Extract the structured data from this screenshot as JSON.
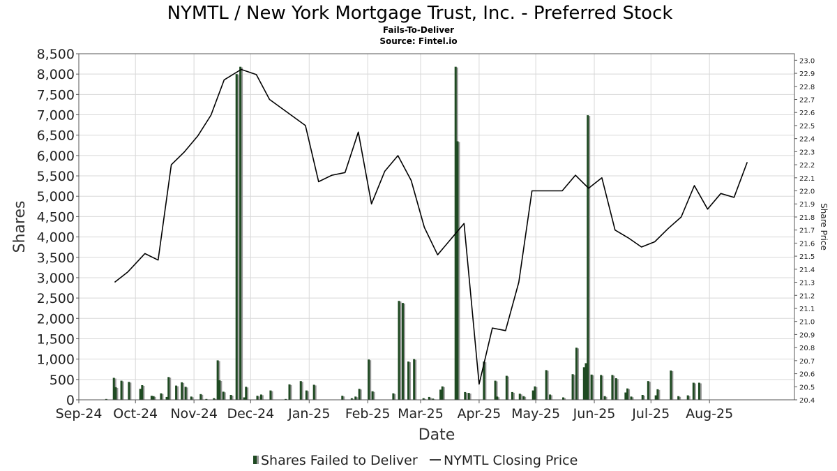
{
  "chart_data": {
    "type": "bar",
    "title": "NYMTL / New York Mortgage Trust, Inc. - Preferred Stock",
    "subtitle_1": "Fails-To-Deliver",
    "subtitle_2": "Source: Fintel.io",
    "xlabel": "Date",
    "ylabel": "Shares",
    "y2label": "Share Price",
    "ylim": [
      0,
      8500
    ],
    "y_ticks": [
      0,
      500,
      1000,
      1500,
      2000,
      2500,
      3000,
      3500,
      4000,
      4500,
      5000,
      5500,
      6000,
      6500,
      7000,
      7500,
      8000,
      8500
    ],
    "y_tick_labels": [
      "0",
      "500",
      "1,000",
      "1,500",
      "2,000",
      "2,500",
      "3,000",
      "3,500",
      "4,000",
      "4,500",
      "5,000",
      "5,500",
      "6,000",
      "6,500",
      "7,000",
      "7,500",
      "8,000",
      "8,500"
    ],
    "y2lim": [
      20.4,
      23.05
    ],
    "y2_ticks": [
      20.4,
      20.5,
      20.6,
      20.7,
      20.8,
      20.9,
      21.0,
      21.1,
      21.2,
      21.3,
      21.4,
      21.5,
      21.6,
      21.7,
      21.8,
      21.9,
      22.0,
      22.1,
      22.2,
      22.3,
      22.4,
      22.5,
      22.6,
      22.7,
      22.8,
      22.9,
      23.0
    ],
    "y2_tick_labels": [
      "20.4",
      "20.5",
      "20.6",
      "20.7",
      "20.8",
      "20.9",
      "21.0",
      "21.1",
      "21.2",
      "21.3",
      "21.4",
      "21.5",
      "21.6",
      "21.7",
      "21.8",
      "21.9",
      "22.0",
      "22.1",
      "22.2",
      "22.3",
      "22.4",
      "22.5",
      "22.6",
      "22.7",
      "22.8",
      "22.9",
      "23.0"
    ],
    "xlim": [
      "2024-09-01",
      "2025-09-15"
    ],
    "x_tick_labels": [
      "Sep-24",
      "Oct-24",
      "Nov-24",
      "Dec-24",
      "Jan-25",
      "Feb-25",
      "Mar-25",
      "Apr-25",
      "May-25",
      "Jun-25",
      "Jul-25",
      "Aug-25"
    ],
    "x_tick_dates": [
      "2024-09-01",
      "2024-10-01",
      "2024-11-01",
      "2024-12-01",
      "2025-01-01",
      "2025-02-01",
      "2025-03-01",
      "2025-04-01",
      "2025-05-01",
      "2025-06-01",
      "2025-07-01",
      "2025-08-01"
    ],
    "grid": true,
    "legend_position": "bottom",
    "legend": [
      "Shares Failed to Deliver",
      "NYMTL Closing Price"
    ],
    "colors": {
      "bar": "#1f4a22",
      "bar_shadow": "#9a9a9a",
      "line": "#000000",
      "grid": "#d8d8d8"
    },
    "series": [
      {
        "type": "bar",
        "values": [
          {
            "x": "2024-09-15",
            "y": 20
          },
          {
            "x": "2024-09-19",
            "y": 540
          },
          {
            "x": "2024-09-20",
            "y": 310
          },
          {
            "x": "2024-09-23",
            "y": 470
          },
          {
            "x": "2024-09-27",
            "y": 440
          },
          {
            "x": "2024-10-03",
            "y": 270
          },
          {
            "x": "2024-10-04",
            "y": 360
          },
          {
            "x": "2024-10-09",
            "y": 100
          },
          {
            "x": "2024-10-10",
            "y": 90
          },
          {
            "x": "2024-10-14",
            "y": 160
          },
          {
            "x": "2024-10-17",
            "y": 70
          },
          {
            "x": "2024-10-18",
            "y": 560
          },
          {
            "x": "2024-10-22",
            "y": 350
          },
          {
            "x": "2024-10-25",
            "y": 430
          },
          {
            "x": "2024-10-27",
            "y": 320
          },
          {
            "x": "2024-10-30",
            "y": 80
          },
          {
            "x": "2024-11-04",
            "y": 140
          },
          {
            "x": "2024-11-07",
            "y": 20
          },
          {
            "x": "2024-11-11",
            "y": 40
          },
          {
            "x": "2024-11-13",
            "y": 970
          },
          {
            "x": "2024-11-14",
            "y": 480
          },
          {
            "x": "2024-11-16",
            "y": 200
          },
          {
            "x": "2024-11-20",
            "y": 120
          },
          {
            "x": "2024-11-23",
            "y": 8000
          },
          {
            "x": "2024-11-25",
            "y": 8180
          },
          {
            "x": "2024-11-27",
            "y": 60
          },
          {
            "x": "2024-11-28",
            "y": 320
          },
          {
            "x": "2024-12-04",
            "y": 100
          },
          {
            "x": "2024-12-06",
            "y": 130
          },
          {
            "x": "2024-12-11",
            "y": 230
          },
          {
            "x": "2024-12-19",
            "y": 20
          },
          {
            "x": "2024-12-21",
            "y": 380
          },
          {
            "x": "2024-12-27",
            "y": 460
          },
          {
            "x": "2024-12-30",
            "y": 230
          },
          {
            "x": "2025-01-03",
            "y": 370
          },
          {
            "x": "2025-01-18",
            "y": 100
          },
          {
            "x": "2025-01-23",
            "y": 40
          },
          {
            "x": "2025-01-25",
            "y": 80
          },
          {
            "x": "2025-01-27",
            "y": 270
          },
          {
            "x": "2025-02-01",
            "y": 990
          },
          {
            "x": "2025-02-03",
            "y": 210
          },
          {
            "x": "2025-02-14",
            "y": 160
          },
          {
            "x": "2025-02-17",
            "y": 2430
          },
          {
            "x": "2025-02-19",
            "y": 2380
          },
          {
            "x": "2025-02-22",
            "y": 940
          },
          {
            "x": "2025-02-25",
            "y": 1000
          },
          {
            "x": "2025-03-02",
            "y": 40
          },
          {
            "x": "2025-03-05",
            "y": 70
          },
          {
            "x": "2025-03-07",
            "y": 30
          },
          {
            "x": "2025-03-11",
            "y": 250
          },
          {
            "x": "2025-03-12",
            "y": 330
          },
          {
            "x": "2025-03-19",
            "y": 8180
          },
          {
            "x": "2025-03-20",
            "y": 6350
          },
          {
            "x": "2025-03-24",
            "y": 190
          },
          {
            "x": "2025-03-26",
            "y": 170
          },
          {
            "x": "2025-04-03",
            "y": 940
          },
          {
            "x": "2025-04-09",
            "y": 470
          },
          {
            "x": "2025-04-10",
            "y": 80
          },
          {
            "x": "2025-04-15",
            "y": 590
          },
          {
            "x": "2025-04-18",
            "y": 190
          },
          {
            "x": "2025-04-22",
            "y": 150
          },
          {
            "x": "2025-04-24",
            "y": 90
          },
          {
            "x": "2025-04-29",
            "y": 230
          },
          {
            "x": "2025-04-30",
            "y": 330
          },
          {
            "x": "2025-05-06",
            "y": 730
          },
          {
            "x": "2025-05-08",
            "y": 130
          },
          {
            "x": "2025-05-15",
            "y": 60
          },
          {
            "x": "2025-05-20",
            "y": 630
          },
          {
            "x": "2025-05-22",
            "y": 1280
          },
          {
            "x": "2025-05-26",
            "y": 800
          },
          {
            "x": "2025-05-27",
            "y": 900
          },
          {
            "x": "2025-05-28",
            "y": 6990
          },
          {
            "x": "2025-05-30",
            "y": 620
          },
          {
            "x": "2025-06-04",
            "y": 610
          },
          {
            "x": "2025-06-06",
            "y": 90
          },
          {
            "x": "2025-06-10",
            "y": 610
          },
          {
            "x": "2025-06-12",
            "y": 530
          },
          {
            "x": "2025-06-17",
            "y": 180
          },
          {
            "x": "2025-06-18",
            "y": 280
          },
          {
            "x": "2025-06-20",
            "y": 80
          },
          {
            "x": "2025-06-26",
            "y": 120
          },
          {
            "x": "2025-06-29",
            "y": 460
          },
          {
            "x": "2025-07-03",
            "y": 110
          },
          {
            "x": "2025-07-04",
            "y": 260
          },
          {
            "x": "2025-07-11",
            "y": 720
          },
          {
            "x": "2025-07-15",
            "y": 90
          },
          {
            "x": "2025-07-20",
            "y": 110
          },
          {
            "x": "2025-07-23",
            "y": 420
          },
          {
            "x": "2025-07-26",
            "y": 420
          }
        ]
      },
      {
        "type": "line",
        "values": [
          {
            "x": "2024-09-20",
            "y": 21.3
          },
          {
            "x": "2024-09-27",
            "y": 21.38
          },
          {
            "x": "2024-10-06",
            "y": 21.52
          },
          {
            "x": "2024-10-13",
            "y": 21.47
          },
          {
            "x": "2024-10-20",
            "y": 22.2
          },
          {
            "x": "2024-10-27",
            "y": 22.3
          },
          {
            "x": "2024-11-03",
            "y": 22.42
          },
          {
            "x": "2024-11-10",
            "y": 22.58
          },
          {
            "x": "2024-11-17",
            "y": 22.85
          },
          {
            "x": "2024-11-26",
            "y": 22.93
          },
          {
            "x": "2024-12-04",
            "y": 22.89
          },
          {
            "x": "2024-12-11",
            "y": 22.7
          },
          {
            "x": "2024-12-30",
            "y": 22.5
          },
          {
            "x": "2025-01-06",
            "y": 22.07
          },
          {
            "x": "2025-01-13",
            "y": 22.12
          },
          {
            "x": "2025-01-20",
            "y": 22.14
          },
          {
            "x": "2025-01-27",
            "y": 22.45
          },
          {
            "x": "2025-02-03",
            "y": 21.9
          },
          {
            "x": "2025-02-10",
            "y": 22.15
          },
          {
            "x": "2025-02-17",
            "y": 22.27
          },
          {
            "x": "2025-02-24",
            "y": 22.08
          },
          {
            "x": "2025-03-03",
            "y": 21.72
          },
          {
            "x": "2025-03-10",
            "y": 21.51
          },
          {
            "x": "2025-03-24",
            "y": 21.75
          },
          {
            "x": "2025-04-01",
            "y": 20.52
          },
          {
            "x": "2025-04-08",
            "y": 20.95
          },
          {
            "x": "2025-04-15",
            "y": 20.93
          },
          {
            "x": "2025-04-22",
            "y": 21.3
          },
          {
            "x": "2025-04-29",
            "y": 22.0
          },
          {
            "x": "2025-05-15",
            "y": 22.0
          },
          {
            "x": "2025-05-22",
            "y": 22.12
          },
          {
            "x": "2025-05-29",
            "y": 22.02
          },
          {
            "x": "2025-06-05",
            "y": 22.1
          },
          {
            "x": "2025-06-12",
            "y": 21.7
          },
          {
            "x": "2025-06-19",
            "y": 21.64
          },
          {
            "x": "2025-06-26",
            "y": 21.57
          },
          {
            "x": "2025-07-03",
            "y": 21.61
          },
          {
            "x": "2025-07-10",
            "y": 21.71
          },
          {
            "x": "2025-07-17",
            "y": 21.8
          },
          {
            "x": "2025-07-24",
            "y": 22.04
          },
          {
            "x": "2025-07-31",
            "y": 21.86
          },
          {
            "x": "2025-08-07",
            "y": 21.98
          },
          {
            "x": "2025-08-14",
            "y": 21.95
          },
          {
            "x": "2025-08-21",
            "y": 22.22
          }
        ]
      }
    ]
  }
}
